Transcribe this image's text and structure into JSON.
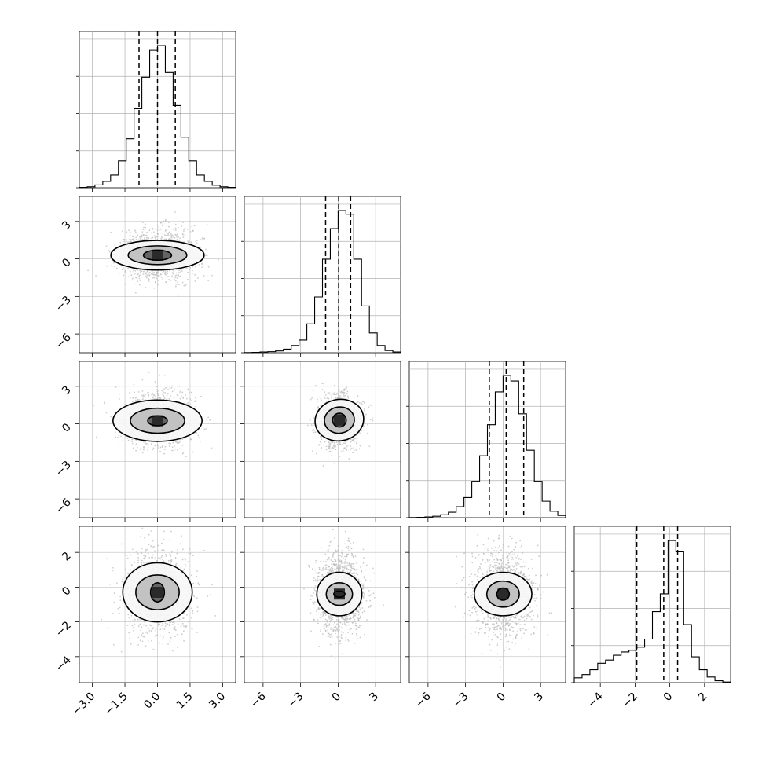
{
  "chart_data": {
    "type": "corner",
    "n_params": 4,
    "colors": {
      "line": "#000000",
      "grid": "#b0b0b0",
      "scatter": "#b8b8b8",
      "density_fill": [
        "#f7f7f7",
        "#bdbdbd",
        "#8a8a8a",
        "#5a5a5a",
        "#2a2a2a"
      ]
    },
    "grid": true,
    "params": [
      {
        "index": 0,
        "range": [
          -3.6,
          3.6
        ],
        "ticks": [
          -3.0,
          -1.5,
          0.0,
          1.5,
          3.0
        ],
        "tick_labels": [
          "−3.0",
          "−1.5",
          "0.0",
          "1.5",
          "3.0"
        ],
        "quantiles": [
          -0.85,
          0.0,
          0.82
        ],
        "hist_edges": [
          -3.6,
          -3.24,
          -2.88,
          -2.52,
          -2.16,
          -1.8,
          -1.44,
          -1.08,
          -0.72,
          -0.36,
          0.0,
          0.36,
          0.72,
          1.08,
          1.44,
          1.8,
          2.16,
          2.52,
          2.88,
          3.24,
          3.6
        ],
        "hist_counts": [
          2,
          6,
          18,
          40,
          80,
          170,
          310,
          500,
          700,
          870,
          900,
          730,
          520,
          320,
          170,
          80,
          40,
          16,
          6,
          2
        ]
      },
      {
        "index": 1,
        "range": [
          -7.5,
          5.0
        ],
        "ticks": [
          -6,
          -3,
          0,
          3
        ],
        "tick_labels": [
          "−6",
          "−3",
          "0",
          "3"
        ],
        "quantiles": [
          -1.0,
          0.05,
          1.0
        ],
        "hist_edges": [
          -7.5,
          -6.875,
          -6.25,
          -5.625,
          -5.0,
          -4.375,
          -3.75,
          -3.125,
          -2.5,
          -1.875,
          -1.25,
          -0.625,
          0.0,
          0.625,
          1.25,
          1.875,
          2.5,
          3.125,
          3.75,
          4.375,
          5.0
        ],
        "hist_counts": [
          1,
          2,
          4,
          6,
          10,
          20,
          40,
          70,
          160,
          310,
          520,
          690,
          790,
          770,
          520,
          260,
          110,
          40,
          12,
          4
        ]
      },
      {
        "index": 2,
        "range": [
          -7.5,
          5.0
        ],
        "ticks": [
          -6,
          -3,
          0,
          3
        ],
        "tick_labels": [
          "−6",
          "−3",
          "0",
          "3"
        ],
        "quantiles": [
          -1.1,
          0.25,
          1.65
        ],
        "hist_edges": [
          -7.5,
          -6.875,
          -6.25,
          -5.625,
          -5.0,
          -4.375,
          -3.75,
          -3.125,
          -2.5,
          -1.875,
          -1.25,
          -0.625,
          0.0,
          0.625,
          1.25,
          1.875,
          2.5,
          3.125,
          3.75,
          4.375,
          5.0
        ],
        "hist_counts": [
          1,
          2,
          4,
          8,
          16,
          30,
          60,
          110,
          200,
          340,
          510,
          690,
          780,
          750,
          570,
          370,
          200,
          90,
          35,
          12
        ]
      },
      {
        "index": 3,
        "range": [
          -5.5,
          3.5
        ],
        "ticks": [
          -4,
          -2,
          0,
          2
        ],
        "tick_labels": [
          "−4",
          "−2",
          "0",
          "2"
        ],
        "quantiles": [
          -1.9,
          -0.35,
          0.45
        ],
        "hist_edges": [
          -5.5,
          -5.05,
          -4.6,
          -4.15,
          -3.7,
          -3.25,
          -2.8,
          -2.35,
          -1.9,
          -1.45,
          -1.0,
          -0.55,
          -0.1,
          0.35,
          0.8,
          1.25,
          1.7,
          2.15,
          2.6,
          3.05,
          3.5
        ],
        "hist_counts": [
          30,
          50,
          80,
          120,
          140,
          170,
          190,
          200,
          220,
          270,
          440,
          550,
          880,
          810,
          360,
          160,
          80,
          35,
          12,
          4
        ]
      }
    ],
    "pairs": [
      {
        "row": 1,
        "col": 0,
        "mean": [
          0.0,
          0.3
        ],
        "spread": [
          0.85,
          1.0
        ],
        "contours": [
          [
            0.65,
            0.4,
            0.0
          ],
          [
            1.35,
            0.75,
            0.0
          ],
          [
            2.15,
            1.18,
            0.0
          ]
        ]
      },
      {
        "row": 2,
        "col": 0,
        "mean": [
          0.0,
          0.25
        ],
        "spread": [
          0.85,
          1.05
        ],
        "contours": [
          [
            0.45,
            0.4,
            0.0
          ],
          [
            1.25,
            1.0,
            0.0
          ],
          [
            2.05,
            1.65,
            0.0
          ]
        ]
      },
      {
        "row": 2,
        "col": 1,
        "mean": [
          0.1,
          0.3
        ],
        "spread": [
          0.85,
          1.05
        ],
        "contours": [
          [
            0.55,
            0.55,
            0.0
          ],
          [
            1.2,
            1.05,
            -0.3
          ],
          [
            1.95,
            1.65,
            -0.35
          ]
        ]
      },
      {
        "row": 3,
        "col": 0,
        "mean": [
          0.0,
          -0.3
        ],
        "spread": [
          0.75,
          1.2
        ],
        "contours": [
          [
            0.32,
            0.55,
            0.0
          ],
          [
            1.0,
            1.0,
            0.0
          ],
          [
            1.6,
            1.7,
            0.0
          ]
        ]
      },
      {
        "row": 3,
        "col": 1,
        "mean": [
          0.1,
          -0.4
        ],
        "spread": [
          0.9,
          1.2
        ],
        "contours": [
          [
            0.45,
            0.18,
            0.0
          ],
          [
            1.05,
            0.65,
            0.0
          ],
          [
            1.8,
            1.25,
            0.0
          ]
        ]
      },
      {
        "row": 3,
        "col": 2,
        "mean": [
          0.0,
          -0.4
        ],
        "spread": [
          1.2,
          1.2
        ],
        "contours": [
          [
            0.5,
            0.35,
            0.0
          ],
          [
            1.3,
            0.75,
            0.0
          ],
          [
            2.3,
            1.25,
            0.0
          ]
        ]
      }
    ]
  }
}
